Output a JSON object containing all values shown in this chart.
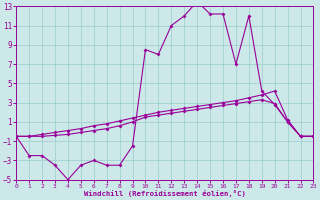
{
  "line_color": "#990099",
  "bg_color": "#cce8e8",
  "grid_color": "#99cccc",
  "xlabel": "Windchill (Refroidissement éolien,°C)",
  "xlim": [
    0,
    23
  ],
  "ylim": [
    -5,
    13
  ],
  "xticks": [
    0,
    1,
    2,
    3,
    4,
    5,
    6,
    7,
    8,
    9,
    10,
    11,
    12,
    13,
    14,
    15,
    16,
    17,
    18,
    19,
    20,
    21,
    22,
    23
  ],
  "yticks": [
    -5,
    -3,
    -1,
    1,
    3,
    5,
    7,
    9,
    11,
    13
  ],
  "marker": "D",
  "markersize": 2.0,
  "linewidth": 0.8,
  "line1_x": [
    0,
    1,
    2,
    3,
    4,
    5,
    6,
    7,
    8,
    9,
    10,
    11,
    12,
    13,
    14,
    15,
    16,
    17,
    18,
    19,
    20,
    21,
    22,
    23
  ],
  "line1_y": [
    -0.5,
    -0.5,
    -0.5,
    -0.4,
    -0.3,
    -0.1,
    0.1,
    0.3,
    0.6,
    1.0,
    1.5,
    1.7,
    1.9,
    2.1,
    2.3,
    2.5,
    2.7,
    2.9,
    3.1,
    3.3,
    2.9,
    1.0,
    -0.5,
    -0.5
  ],
  "line2_x": [
    0,
    1,
    2,
    3,
    4,
    5,
    6,
    7,
    8,
    9,
    10,
    11,
    12,
    13,
    14,
    15,
    16,
    17,
    18,
    19,
    20,
    21,
    22,
    23
  ],
  "line2_y": [
    -0.5,
    -0.5,
    -0.3,
    -0.1,
    0.1,
    0.3,
    0.6,
    0.8,
    1.1,
    1.4,
    1.7,
    2.0,
    2.2,
    2.4,
    2.6,
    2.8,
    3.0,
    3.2,
    3.5,
    3.8,
    4.2,
    1.2,
    -0.5,
    -0.5
  ],
  "line3_x": [
    0,
    1,
    2,
    3,
    4,
    5,
    6,
    7,
    8,
    9,
    10,
    11,
    12,
    13,
    14,
    15,
    16,
    17,
    18,
    19,
    20,
    21,
    22,
    23
  ],
  "line3_y": [
    -0.5,
    -2.5,
    -2.5,
    -3.5,
    -5.0,
    -3.5,
    -3.0,
    -3.5,
    -3.5,
    -1.5,
    8.5,
    8.0,
    11.0,
    12.0,
    13.5,
    12.2,
    12.2,
    7.0,
    12.0,
    4.2,
    2.8,
    1.0,
    -0.5,
    -0.5
  ]
}
